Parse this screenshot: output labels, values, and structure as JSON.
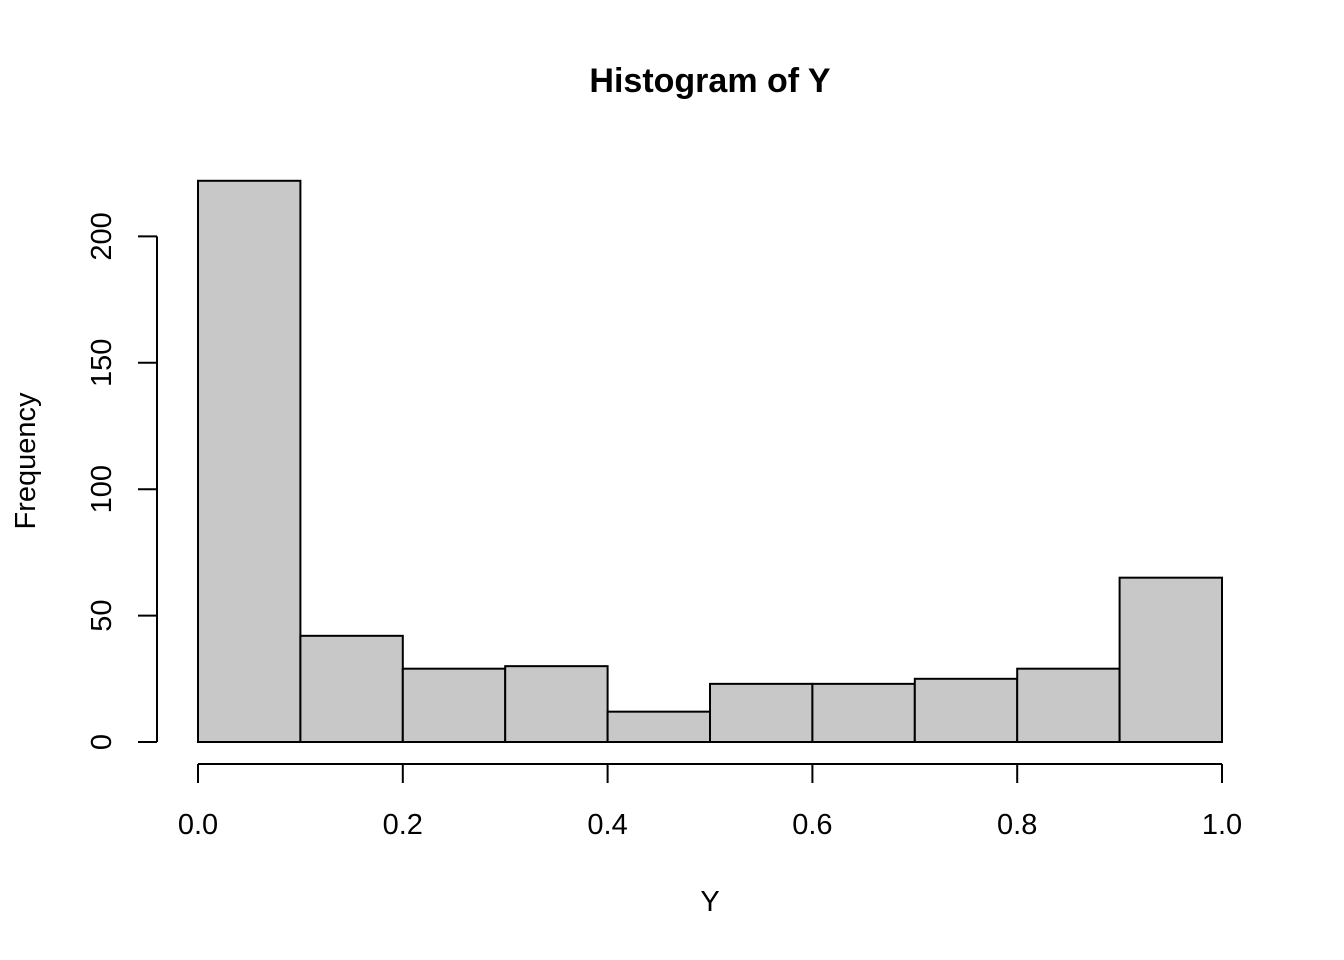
{
  "chart_data": {
    "type": "bar",
    "title": "Histogram of Y",
    "xlabel": "Y",
    "ylabel": "Frequency",
    "bins": [
      {
        "start": 0.0,
        "end": 0.1,
        "count": 222
      },
      {
        "start": 0.1,
        "end": 0.2,
        "count": 42
      },
      {
        "start": 0.2,
        "end": 0.3,
        "count": 29
      },
      {
        "start": 0.3,
        "end": 0.4,
        "count": 30
      },
      {
        "start": 0.4,
        "end": 0.5,
        "count": 12
      },
      {
        "start": 0.5,
        "end": 0.6,
        "count": 23
      },
      {
        "start": 0.6,
        "end": 0.7,
        "count": 23
      },
      {
        "start": 0.7,
        "end": 0.8,
        "count": 25
      },
      {
        "start": 0.8,
        "end": 0.9,
        "count": 29
      },
      {
        "start": 0.9,
        "end": 1.0,
        "count": 65
      }
    ],
    "xlim": [
      0.0,
      1.0
    ],
    "ylim": [
      0,
      222
    ],
    "x_ticks": [
      0.0,
      0.2,
      0.4,
      0.6,
      0.8,
      1.0
    ],
    "x_tick_labels": [
      "0.0",
      "0.2",
      "0.4",
      "0.6",
      "0.8",
      "1.0"
    ],
    "y_ticks": [
      0,
      50,
      100,
      150,
      200
    ],
    "y_tick_labels": [
      "0",
      "50",
      "100",
      "150",
      "200"
    ],
    "grid": false,
    "colors": {
      "bar_fill": "#c8c8c8",
      "bar_stroke": "#000000"
    }
  }
}
